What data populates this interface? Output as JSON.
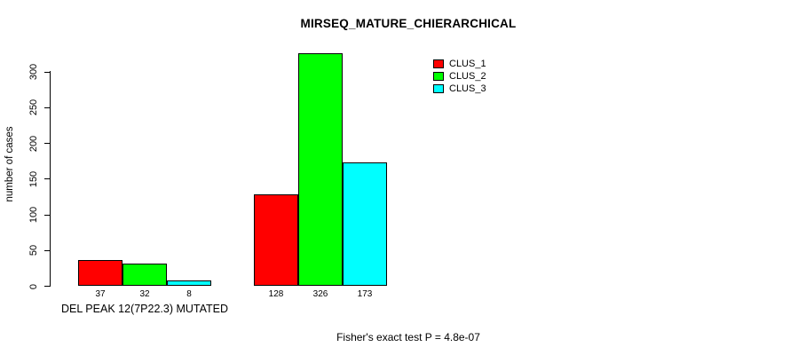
{
  "chart_data": {
    "type": "bar",
    "title": "MIRSEQ_MATURE_CHIERARCHICAL",
    "xlabel": "",
    "ylabel": "number of cases",
    "ylim": [
      0,
      300
    ],
    "yticks": [
      0,
      50,
      100,
      150,
      200,
      250,
      300
    ],
    "grid": false,
    "legend_position": "top-right",
    "categories": [
      "DEL PEAK 12(7P22.3) MUTATED",
      ""
    ],
    "series": [
      {
        "name": "CLUS_1",
        "color": "#ff0000",
        "values": [
          37,
          128
        ]
      },
      {
        "name": "CLUS_2",
        "color": "#00ff00",
        "values": [
          32,
          326
        ]
      },
      {
        "name": "CLUS_3",
        "color": "#00ffff",
        "values": [
          8,
          173
        ]
      }
    ],
    "bar_value_labels": [
      [
        37,
        32,
        8
      ],
      [
        128,
        326,
        173
      ]
    ],
    "annotation": "Fisher's exact test P = 4.8e-07"
  }
}
